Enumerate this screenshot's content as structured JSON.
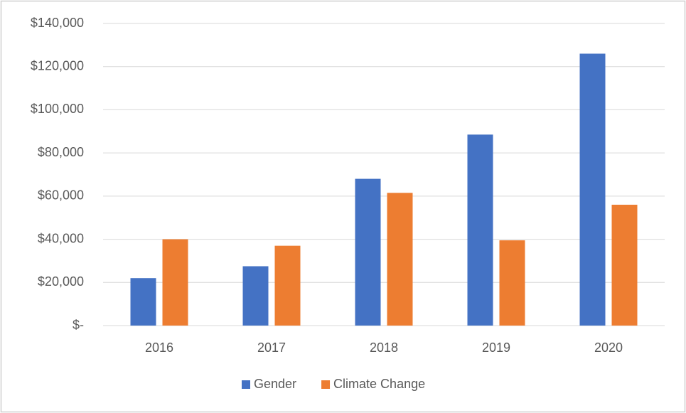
{
  "chart_data": {
    "type": "bar",
    "categories": [
      "2016",
      "2017",
      "2018",
      "2019",
      "2020"
    ],
    "series": [
      {
        "name": "Gender",
        "color": "#4472c4",
        "values": [
          22000,
          27500,
          68000,
          88500,
          126000
        ]
      },
      {
        "name": "Climate Change",
        "color": "#ed7d31",
        "values": [
          40000,
          37000,
          61500,
          39500,
          56000
        ]
      }
    ],
    "ylim": [
      0,
      140000
    ],
    "yticks": [
      {
        "value": 0,
        "label": "$-"
      },
      {
        "value": 20000,
        "label": "$20,000"
      },
      {
        "value": 40000,
        "label": "$40,000"
      },
      {
        "value": 60000,
        "label": "$60,000"
      },
      {
        "value": 80000,
        "label": "$80,000"
      },
      {
        "value": 100000,
        "label": "$100,000"
      },
      {
        "value": 120000,
        "label": "$120,000"
      },
      {
        "value": 140000,
        "label": "$140,000"
      }
    ],
    "grid": true,
    "legend": "bottom"
  }
}
